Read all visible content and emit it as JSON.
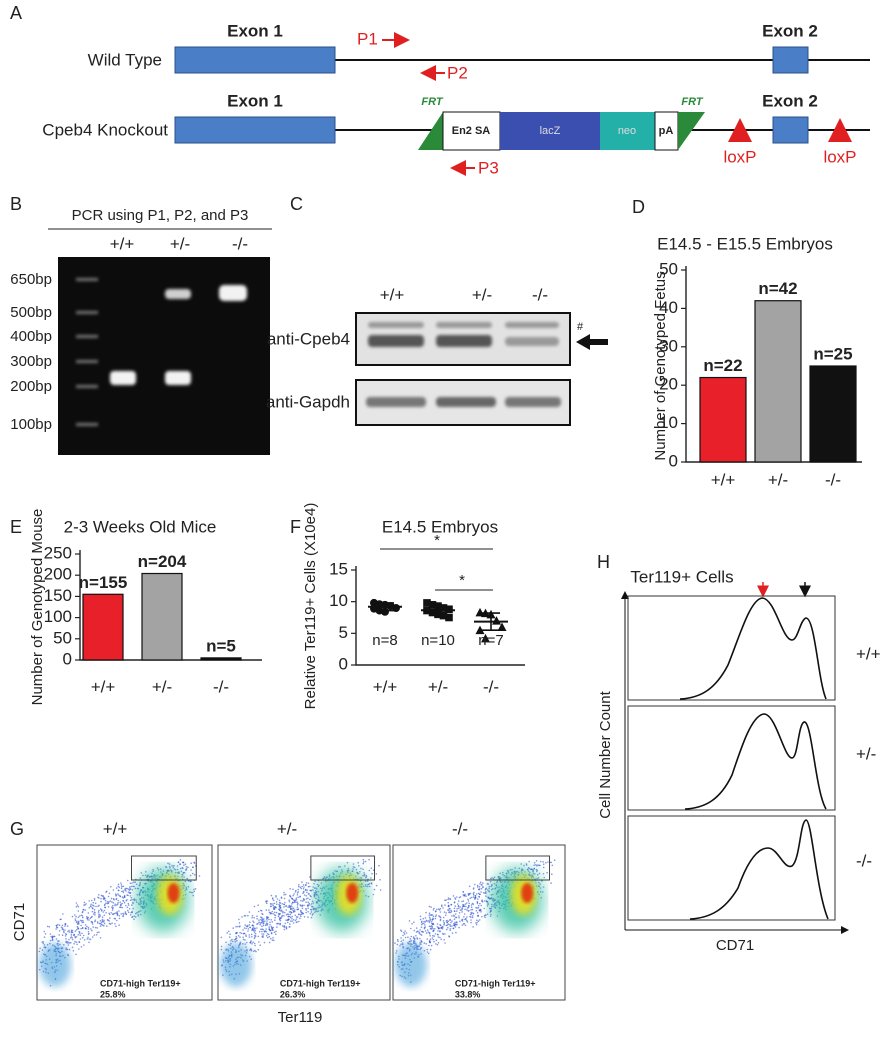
{
  "panel_labels": [
    "A",
    "B",
    "C",
    "D",
    "E",
    "F",
    "G",
    "H"
  ],
  "panel_a": {
    "exon1": "Exon 1",
    "exon2": "Exon 2",
    "wild_type": "Wild Type",
    "knockout": "Cpeb4 Knockout",
    "p1": "P1",
    "p2": "P2",
    "p3": "P3",
    "frt": "FRT",
    "en2sa": "En2 SA",
    "lacz": "lacZ",
    "neo": "neo",
    "pa": "pA",
    "loxp": "loxP"
  },
  "panel_b": {
    "title": "PCR using P1, P2, and P3",
    "lanes": [
      "+/+",
      "+/-",
      "-/-"
    ],
    "ladder": [
      "650bp",
      "500bp",
      "400bp",
      "300bp",
      "200bp",
      "100bp"
    ]
  },
  "panel_c": {
    "lanes": [
      "+/+",
      "+/-",
      "-/-"
    ],
    "rows": [
      "anti-Cpeb4",
      "anti-Gapdh"
    ],
    "mark": "#"
  },
  "chart_data": [
    {
      "type": "bar",
      "title": "E14.5 - E15.5 Embryos",
      "y_label": "Number of Genotyped Fetus",
      "categories": [
        "+/+",
        "+/-",
        "-/-"
      ],
      "values": [
        22,
        42,
        25
      ],
      "value_labels": [
        "n=22",
        "n=42",
        "n=25"
      ],
      "colors": [
        "#e8202a",
        "#a3a3a3",
        "#111111"
      ],
      "ylim": [
        0,
        50
      ],
      "yticks": [
        0,
        10,
        20,
        30,
        40,
        50
      ]
    },
    {
      "type": "bar",
      "title": "2-3 Weeks Old Mice",
      "y_label": "Number of Genotyped Mouse",
      "categories": [
        "+/+",
        "+/-",
        "-/-"
      ],
      "values": [
        155,
        204,
        5
      ],
      "value_labels": [
        "n=155",
        "n=204",
        "n=5"
      ],
      "colors": [
        "#e8202a",
        "#a3a3a3",
        "#111111"
      ],
      "ylim": [
        0,
        250
      ],
      "yticks": [
        0,
        50,
        100,
        150,
        200,
        250
      ]
    },
    {
      "type": "dot",
      "title": "E14.5 Embryos",
      "y_label": "Relative Ter119+ Cells (X10e4)",
      "categories": [
        "+/+",
        "+/-",
        "-/-"
      ],
      "points": [
        [
          9.8,
          9.6,
          9.5,
          9.3,
          9.0,
          8.9,
          8.6,
          8.4
        ],
        [
          9.8,
          9.5,
          9.3,
          9.0,
          8.8,
          8.6,
          8.3,
          8.0,
          7.8,
          7.5
        ],
        [
          8.3,
          8.2,
          8.0,
          7.0,
          6.0,
          5.5,
          4.2
        ]
      ],
      "means": [
        9.2,
        8.65,
        6.85
      ],
      "errors": [
        0.6,
        0.8,
        1.35
      ],
      "n_labels": [
        "n=8",
        "n=10",
        "n=7"
      ],
      "significance": [
        "*",
        "*"
      ],
      "ylim": [
        0,
        15
      ],
      "yticks": [
        0,
        5,
        10,
        15
      ]
    }
  ],
  "panel_g": {
    "groups": [
      "+/+",
      "+/-",
      "-/-"
    ],
    "y_label": "CD71",
    "x_label": "Ter119",
    "gate_label": "CD71-high Ter119+",
    "percentages": [
      "25.8%",
      "26.3%",
      "33.8%"
    ]
  },
  "panel_h": {
    "title": "Ter119+ Cells",
    "groups": [
      "+/+",
      "+/-",
      "-/-"
    ],
    "y_label": "Cell Number Count",
    "x_label": "CD71"
  }
}
